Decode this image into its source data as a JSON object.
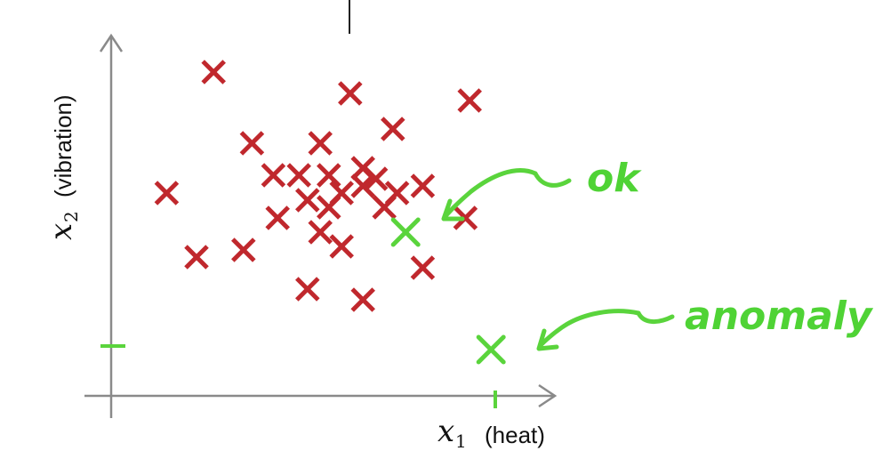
{
  "chart_data": {
    "type": "scatter",
    "xlabel": {
      "var": "x",
      "sub": "1",
      "word": "(heat)"
    },
    "ylabel": {
      "var": "x",
      "sub": "2",
      "word": "(vibration)"
    },
    "xlim": [
      0,
      10
    ],
    "ylim": [
      0,
      10
    ],
    "grid": false,
    "series": [
      {
        "role": "normal",
        "color": "#c0282d",
        "marker": "x",
        "points": [
          [
            2.4,
            9.1
          ],
          [
            5.6,
            8.5
          ],
          [
            8.4,
            8.3
          ],
          [
            3.3,
            7.1
          ],
          [
            4.9,
            7.1
          ],
          [
            6.6,
            7.5
          ],
          [
            3.8,
            6.2
          ],
          [
            4.4,
            6.2
          ],
          [
            5.1,
            6.2
          ],
          [
            5.9,
            6.4
          ],
          [
            6.2,
            6.1
          ],
          [
            5.9,
            5.9
          ],
          [
            1.3,
            5.7
          ],
          [
            4.6,
            5.5
          ],
          [
            5.4,
            5.7
          ],
          [
            6.7,
            5.7
          ],
          [
            7.3,
            5.9
          ],
          [
            5.1,
            5.3
          ],
          [
            3.9,
            5.0
          ],
          [
            6.4,
            5.3
          ],
          [
            8.3,
            5.0
          ],
          [
            4.9,
            4.6
          ],
          [
            2.0,
            3.9
          ],
          [
            3.1,
            4.1
          ],
          [
            5.4,
            4.2
          ],
          [
            7.3,
            3.6
          ],
          [
            4.6,
            3.0
          ],
          [
            5.9,
            2.7
          ]
        ]
      },
      {
        "role": "test",
        "color": "#5ad43c",
        "marker": "x",
        "points": [
          [
            6.9,
            4.6
          ],
          [
            8.9,
            1.3
          ]
        ]
      }
    ],
    "annotations": [
      {
        "text": "ok",
        "target": [
          6.9,
          4.6
        ]
      },
      {
        "text": "anomaly",
        "target": [
          8.9,
          1.3
        ]
      }
    ],
    "tick_marks": {
      "x": [
        9.0
      ],
      "y": [
        1.4
      ]
    }
  }
}
